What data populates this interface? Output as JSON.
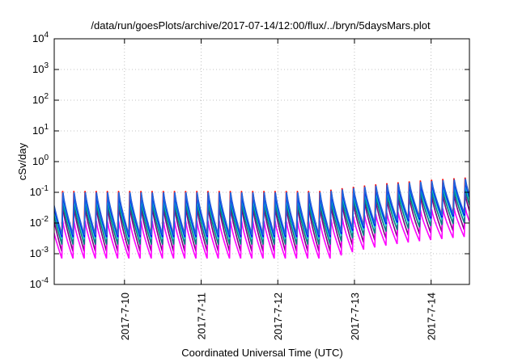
{
  "chart_data": {
    "type": "line",
    "title": "/data/run/goesPlots/archive/2017-07-14/12:00/flux/../bryn/5daysMars.plot",
    "xlabel": "Coordinated Universal Time (UTC)",
    "ylabel": "cSv/day",
    "x_range": [
      "2017-07-09T02:00",
      "2017-07-14T12:00"
    ],
    "ylim": [
      0.0001,
      10000
    ],
    "y_scale": "log",
    "y_ticks": [
      {
        "value": 0.0001,
        "mantissa": "10",
        "exp": "-4"
      },
      {
        "value": 0.001,
        "mantissa": "10",
        "exp": "-3"
      },
      {
        "value": 0.01,
        "mantissa": "10",
        "exp": "-2"
      },
      {
        "value": 0.1,
        "mantissa": "10",
        "exp": "-1"
      },
      {
        "value": 1,
        "mantissa": "10",
        "exp": "0"
      },
      {
        "value": 10,
        "mantissa": "10",
        "exp": "1"
      },
      {
        "value": 100,
        "mantissa": "10",
        "exp": "2"
      },
      {
        "value": 1000,
        "mantissa": "10",
        "exp": "3"
      },
      {
        "value": 10000,
        "mantissa": "10",
        "exp": "4"
      }
    ],
    "x_ticks": [
      {
        "value": "2017-07-10",
        "label": "2017-7-10"
      },
      {
        "value": "2017-07-11",
        "label": "2017-7-11"
      },
      {
        "value": "2017-07-12",
        "label": "2017-7-12"
      },
      {
        "value": "2017-07-13",
        "label": "2017-7-13"
      },
      {
        "value": "2017-07-14",
        "label": "2017-7-14"
      }
    ],
    "grid": true,
    "series_colors": [
      "#ff0000",
      "#800080",
      "#ff00ff",
      "#008080",
      "#00c8c8",
      "#0000ff",
      "#2266dd"
    ],
    "series_peaks": [
      0.11,
      0.035,
      0.012,
      0.05,
      0.07,
      0.09,
      0.1
    ],
    "series_troughs": [
      0.004,
      0.0012,
      0.0007,
      0.002,
      0.003,
      0.0035,
      0.004
    ],
    "cycle_hours": 3.5
  }
}
